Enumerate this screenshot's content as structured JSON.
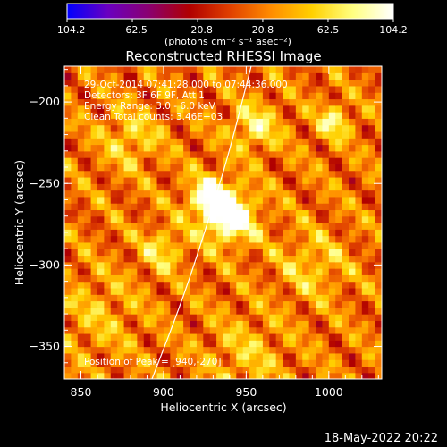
{
  "colorbar": {
    "tick_labels": [
      "−104.2",
      "−62.5",
      "−20.8",
      "20.8",
      "62.5",
      "104.2"
    ],
    "tick_values": [
      -104.2,
      -62.5,
      -20.8,
      20.8,
      62.5,
      104.2
    ],
    "range": [
      -104.2,
      104.2
    ],
    "units_label": "(photons cm⁻² s⁻¹ asec⁻²)",
    "palette": [
      "#0000ff",
      "#6a00c0",
      "#8a0070",
      "#b00000",
      "#e04000",
      "#ff8c00",
      "#ffd000",
      "#ffff80",
      "#ffffff"
    ]
  },
  "chart_data": {
    "type": "heatmap",
    "title": "Reconstructed RHESSI Image",
    "xlabel": "Heliocentric X (arcsec)",
    "ylabel": "Heliocentric Y (arcsec)",
    "xlim": [
      840,
      1032
    ],
    "ylim": [
      -370,
      -178
    ],
    "x_ticks": [
      850,
      900,
      950,
      1000
    ],
    "x_tick_labels": [
      "850",
      "900",
      "950",
      "1000"
    ],
    "y_ticks": [
      -350,
      -300,
      -250,
      -200
    ],
    "y_tick_labels": [
      "−350",
      "−300",
      "−250",
      "−200"
    ],
    "info_lines": [
      "29-Oct-2014 07:41:28.000 to 07:44:36.000",
      "Detectors: 3F 6F 9F, Att 1",
      "Energy Range: 3.0 - 6.0 keV",
      "Clean    Total counts: 3.46E+03"
    ],
    "peak_label": "Position of Peak = [940,-270]",
    "peak": [
      940,
      -270
    ],
    "value_range": [
      -104.2,
      104.2
    ],
    "sources": [
      {
        "x": 940,
        "y": -270,
        "amp": 104.2,
        "sigma": 11
      },
      {
        "x": 928,
        "y": -258,
        "amp": 80,
        "sigma": 9
      },
      {
        "x": 955,
        "y": -215,
        "amp": 55,
        "sigma": 10
      },
      {
        "x": 1003,
        "y": -212,
        "amp": 60,
        "sigma": 7
      },
      {
        "x": 880,
        "y": -222,
        "amp": 40,
        "sigma": 12
      },
      {
        "x": 900,
        "y": -290,
        "amp": 45,
        "sigma": 9
      },
      {
        "x": 990,
        "y": -300,
        "amp": 35,
        "sigma": 14
      },
      {
        "x": 860,
        "y": -330,
        "amp": 25,
        "sigma": 18
      },
      {
        "x": 950,
        "y": -355,
        "amp": 30,
        "sigma": 16
      }
    ],
    "limb_points": [
      [
        893,
        -370
      ],
      [
        912,
        -320
      ],
      [
        928,
        -270
      ],
      [
        940,
        -230
      ],
      [
        953,
        -178
      ]
    ]
  },
  "footer": {
    "timestamp": "18-May-2022 20:22"
  }
}
